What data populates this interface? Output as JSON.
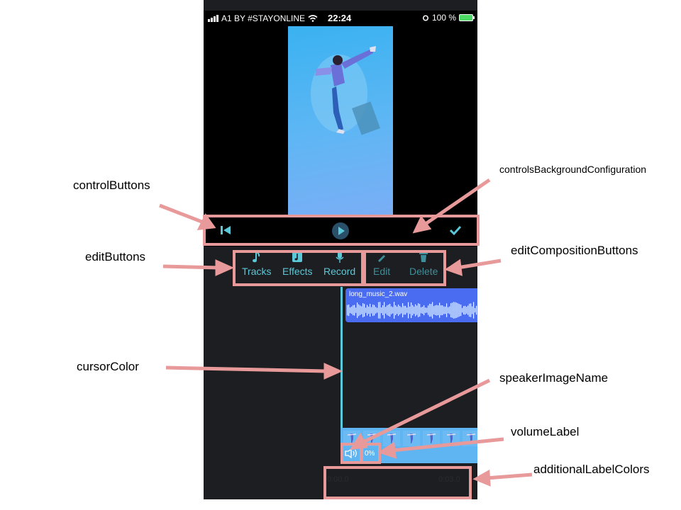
{
  "status_bar": {
    "carrier": "A1 BY #STAYONLINE",
    "time": "22:24",
    "battery": "100 %"
  },
  "controls": {
    "back_icon": "skip-to-start-icon",
    "play_icon": "play-icon",
    "done_icon": "checkmark-icon"
  },
  "edit_buttons": [
    {
      "label": "Tracks",
      "icon": "music-note-icon"
    },
    {
      "label": "Effects",
      "icon": "effects-icon"
    },
    {
      "label": "Record",
      "icon": "microphone-icon"
    }
  ],
  "edit_composition_buttons": [
    {
      "label": "Edit",
      "icon": "pencil-icon"
    },
    {
      "label": "Delete",
      "icon": "trash-icon"
    }
  ],
  "timeline": {
    "audio_track_name": "long_music_2.wav",
    "volume_label": "0%",
    "time_start": "0:00.0",
    "time_end": "0:03.0"
  },
  "annotations": {
    "control_buttons": "controlButtons",
    "controls_background": "controlsBackgroundConfiguration",
    "edit_buttons": "editButtons",
    "edit_composition_buttons": "editCompositionButtons",
    "cursor_color": "cursorColor",
    "speaker_image_name": "speakerImageName",
    "volume_label": "volumeLabel",
    "additional_label_colors": "additionalLabelColors"
  },
  "colors": {
    "accent": "#5ac8d8",
    "annotation": "#e8999a",
    "audio_track": "#4a6cf0",
    "background": "#1d1e21"
  }
}
